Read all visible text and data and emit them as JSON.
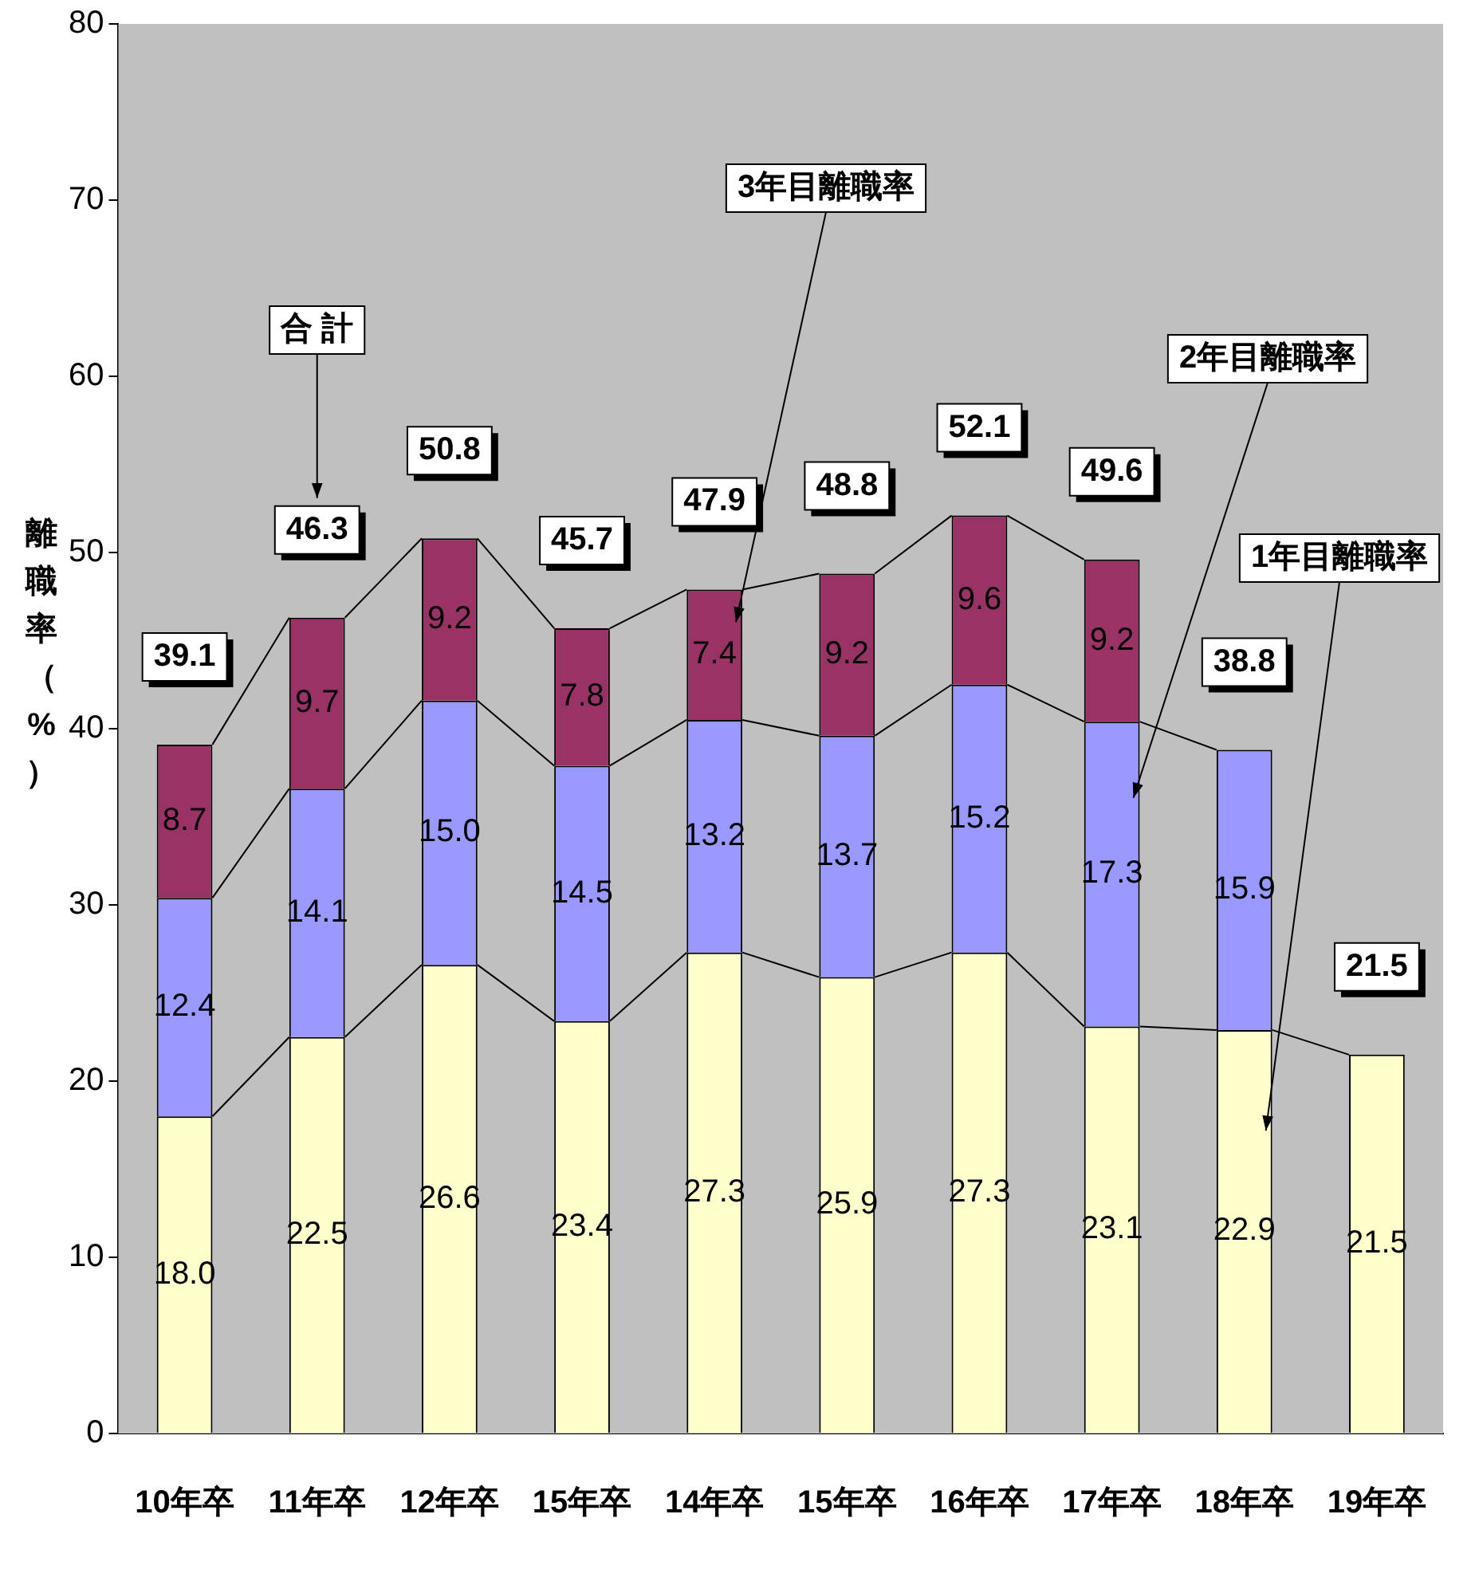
{
  "chart_data": {
    "type": "bar",
    "stacked": true,
    "ylabel": "離職率（%）",
    "categories": [
      "10年卒",
      "11年卒",
      "12年卒",
      "15年卒",
      "14年卒",
      "15年卒",
      "16年卒",
      "17年卒",
      "18年卒",
      "19年卒"
    ],
    "series": [
      {
        "name": "1年目離職率",
        "color": "#ffffcc",
        "values": [
          18.0,
          22.5,
          26.6,
          23.4,
          27.3,
          25.9,
          27.3,
          23.1,
          22.9,
          21.5
        ],
        "value_labels": [
          "18.0",
          "22.5",
          "26.6",
          "23.4",
          "27.3",
          "25.9",
          "27.3",
          "23.1",
          "22.9",
          "21.5"
        ]
      },
      {
        "name": "2年目離職率",
        "color": "#9999ff",
        "values": [
          12.4,
          14.1,
          15.0,
          14.5,
          13.2,
          13.7,
          15.2,
          17.3,
          15.9,
          null
        ],
        "value_labels": [
          "12.4",
          "14.1",
          "15.0",
          "14.5",
          "13.2",
          "13.7",
          "15.2",
          "17.3",
          "15.9",
          null
        ]
      },
      {
        "name": "3年目離職率",
        "color": "#993366",
        "values": [
          8.7,
          9.7,
          9.2,
          7.8,
          7.4,
          9.2,
          9.6,
          9.2,
          null,
          null
        ],
        "value_labels": [
          "8.7",
          "9.7",
          "9.2",
          "7.8",
          "7.4",
          "9.2",
          "9.6",
          "9.2",
          null,
          null
        ]
      }
    ],
    "totals": [
      "39.1",
      "46.3",
      "50.8",
      "45.7",
      "47.9",
      "48.8",
      "52.1",
      "49.6",
      "38.8",
      "21.5"
    ],
    "annotations": [
      "合 計"
    ],
    "ylim": [
      0,
      80
    ],
    "yticks": [
      0,
      10,
      20,
      30,
      40,
      50,
      60,
      70,
      80
    ],
    "grid": false,
    "legend": false
  }
}
